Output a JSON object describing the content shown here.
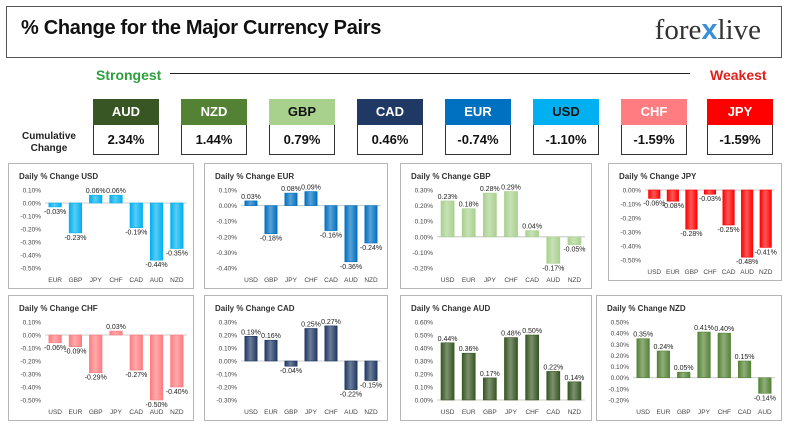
{
  "header": {
    "title": "% Change for the Major Currency Pairs",
    "logo_left": "fore",
    "logo_mid": "x",
    "logo_right": "live"
  },
  "legend": {
    "strongest": "Strongest",
    "weakest": "Weakest"
  },
  "cumulative_label": "Cumulative Change",
  "summary": [
    {
      "currency": "AUD",
      "value": "2.34%",
      "color": "#375623",
      "text": "#ffffff"
    },
    {
      "currency": "NZD",
      "value": "1.44%",
      "color": "#548235",
      "text": "#ffffff"
    },
    {
      "currency": "GBP",
      "value": "0.79%",
      "color": "#a9d18e",
      "text": "#111111"
    },
    {
      "currency": "CAD",
      "value": "0.46%",
      "color": "#1f3864",
      "text": "#ffffff"
    },
    {
      "currency": "EUR",
      "value": "-0.74%",
      "color": "#0070c0",
      "text": "#ffffff"
    },
    {
      "currency": "USD",
      "value": "-1.10%",
      "color": "#00b0f0",
      "text": "#111111"
    },
    {
      "currency": "CHF",
      "value": "-1.59%",
      "color": "#ff7c80",
      "text": "#ffffff"
    },
    {
      "currency": "JPY",
      "value": "-1.59%",
      "color": "#ff0000",
      "text": "#ffffff"
    }
  ],
  "chart_data": [
    {
      "type": "bar",
      "title": "Daily % Change USD",
      "color": "#00b0f0",
      "categories": [
        "EUR",
        "GBP",
        "JPY",
        "CHF",
        "CAD",
        "AUD",
        "NZD"
      ],
      "values": [
        -0.03,
        -0.23,
        0.06,
        0.06,
        -0.19,
        -0.44,
        -0.35
      ],
      "labels": [
        "-0.03%",
        "-0.23%",
        "0.06%",
        "0.06%",
        "-0.19%",
        "-0.44%",
        "-0.35%"
      ],
      "ylim": [
        -0.5,
        0.1
      ],
      "yticks": [
        0.1,
        0,
        -0.1,
        -0.2,
        -0.3,
        -0.4,
        -0.5
      ],
      "yticklabels": [
        "0.10%",
        "0.00%",
        "-0.10%",
        "-0.20%",
        "-0.30%",
        "-0.40%",
        "-0.50%"
      ]
    },
    {
      "type": "bar",
      "title": "Daily % Change EUR",
      "color": "#0070c0",
      "categories": [
        "USD",
        "GBP",
        "JPY",
        "CHF",
        "CAD",
        "AUD",
        "NZD"
      ],
      "values": [
        0.03,
        -0.18,
        0.08,
        0.09,
        -0.16,
        -0.36,
        -0.24
      ],
      "labels": [
        "0.03%",
        "-0.18%",
        "0.08%",
        "0.09%",
        "-0.16%",
        "-0.36%",
        "-0.24%"
      ],
      "ylim": [
        -0.4,
        0.1
      ],
      "yticks": [
        0.1,
        0,
        -0.1,
        -0.2,
        -0.3,
        -0.4
      ],
      "yticklabels": [
        "0.10%",
        "0.00%",
        "-0.10%",
        "-0.20%",
        "-0.30%",
        "-0.40%"
      ]
    },
    {
      "type": "bar",
      "title": "Daily % Change GBP",
      "color": "#a9d18e",
      "categories": [
        "USD",
        "EUR",
        "JPY",
        "CHF",
        "CAD",
        "AUD",
        "NZD"
      ],
      "values": [
        0.23,
        0.18,
        0.28,
        0.29,
        0.04,
        -0.17,
        -0.05
      ],
      "labels": [
        "0.23%",
        "0.18%",
        "0.28%",
        "0.29%",
        "0.04%",
        "-0.17%",
        "-0.05%"
      ],
      "ylim": [
        -0.2,
        0.3
      ],
      "yticks": [
        0.3,
        0.2,
        0.1,
        0,
        -0.1,
        -0.2
      ],
      "yticklabels": [
        "0.30%",
        "0.20%",
        "0.10%",
        "0.00%",
        "-0.10%",
        "-0.20%"
      ]
    },
    {
      "type": "bar",
      "title": "Daily % Change JPY",
      "color": "#ff0000",
      "categories": [
        "USD",
        "EUR",
        "GBP",
        "CHF",
        "CAD",
        "AUD",
        "NZD"
      ],
      "values": [
        -0.06,
        -0.08,
        -0.28,
        -0.03,
        -0.25,
        -0.48,
        -0.41
      ],
      "labels": [
        "-0.06%",
        "-0.08%",
        "-0.28%",
        "-0.03%",
        "-0.25%",
        "-0.48%",
        "-0.41%"
      ],
      "ylim": [
        -0.5,
        0
      ],
      "yticks": [
        0,
        -0.1,
        -0.2,
        -0.3,
        -0.4,
        -0.5
      ],
      "yticklabels": [
        "0.00%",
        "-0.10%",
        "-0.20%",
        "-0.30%",
        "-0.40%",
        "-0.50%"
      ]
    },
    {
      "type": "bar",
      "title": "Daily % Change CHF",
      "color": "#ff7c80",
      "categories": [
        "USD",
        "EUR",
        "GBP",
        "JPY",
        "CAD",
        "AUD",
        "NZD"
      ],
      "values": [
        -0.06,
        -0.09,
        -0.29,
        0.03,
        -0.27,
        -0.5,
        -0.4
      ],
      "labels": [
        "-0.06%",
        "-0.09%",
        "-0.29%",
        "0.03%",
        "-0.27%",
        "-0.50%",
        "-0.40%"
      ],
      "ylim": [
        -0.5,
        0.1
      ],
      "yticks": [
        0.1,
        0,
        -0.1,
        -0.2,
        -0.3,
        -0.4,
        -0.5
      ],
      "yticklabels": [
        "0.10%",
        "0.00%",
        "-0.10%",
        "-0.20%",
        "-0.30%",
        "-0.40%",
        "-0.50%"
      ]
    },
    {
      "type": "bar",
      "title": "Daily % Change CAD",
      "color": "#1f3864",
      "categories": [
        "USD",
        "EUR",
        "GBP",
        "JPY",
        "CHF",
        "AUD",
        "NZD"
      ],
      "values": [
        0.19,
        0.16,
        -0.04,
        0.25,
        0.27,
        -0.22,
        -0.15
      ],
      "labels": [
        "0.19%",
        "0.16%",
        "-0.04%",
        "0.25%",
        "0.27%",
        "-0.22%",
        "-0.15%"
      ],
      "ylim": [
        -0.3,
        0.3
      ],
      "yticks": [
        0.3,
        0.2,
        0.1,
        0,
        -0.1,
        -0.2,
        -0.3
      ],
      "yticklabels": [
        "0.30%",
        "0.20%",
        "0.10%",
        "0.00%",
        "-0.10%",
        "-0.20%",
        "-0.30%"
      ]
    },
    {
      "type": "bar",
      "title": "Daily % Change AUD",
      "color": "#375623",
      "categories": [
        "USD",
        "EUR",
        "GBP",
        "JPY",
        "CHF",
        "CAD",
        "NZD"
      ],
      "values": [
        0.44,
        0.36,
        0.17,
        0.48,
        0.5,
        0.22,
        0.14
      ],
      "labels": [
        "0.44%",
        "0.36%",
        "0.17%",
        "0.48%",
        "0.50%",
        "0.22%",
        "0.14%"
      ],
      "ylim": [
        0,
        0.6
      ],
      "yticks": [
        0.6,
        0.5,
        0.4,
        0.3,
        0.2,
        0.1,
        0
      ],
      "yticklabels": [
        "0.60%",
        "0.50%",
        "0.40%",
        "0.30%",
        "0.20%",
        "0.10%",
        "0.00%"
      ]
    },
    {
      "type": "bar",
      "title": "Daily % Change NZD",
      "color": "#548235",
      "categories": [
        "USD",
        "EUR",
        "GBP",
        "JPY",
        "CHF",
        "CAD",
        "AUD"
      ],
      "values": [
        0.35,
        0.24,
        0.05,
        0.41,
        0.4,
        0.15,
        -0.14
      ],
      "labels": [
        "0.35%",
        "0.24%",
        "0.05%",
        "0.41%",
        "0.40%",
        "0.15%",
        "-0.14%"
      ],
      "ylim": [
        -0.2,
        0.5
      ],
      "yticks": [
        0.5,
        0.4,
        0.3,
        0.2,
        0.1,
        0,
        -0.1,
        -0.2
      ],
      "yticklabels": [
        "0.50%",
        "0.40%",
        "0.30%",
        "0.20%",
        "0.10%",
        "0.00%",
        "-0.10%",
        "-0.20%"
      ]
    }
  ]
}
